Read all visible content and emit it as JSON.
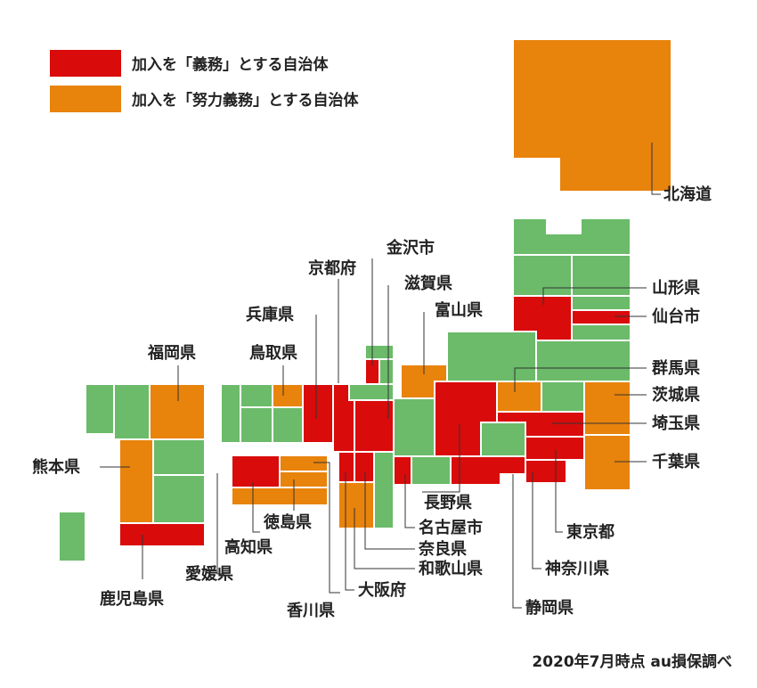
{
  "colors": {
    "mandatory": "#d90b0b",
    "effort": "#e8830c",
    "none": "#6bbb6a"
  },
  "legend": {
    "mandatory": "加入を「義務」とする自治体",
    "effort": "加入を「努力義務」とする自治体"
  },
  "labels": {
    "hokkaido": "北海道",
    "yamagata": "山形県",
    "sendai": "仙台市",
    "gunma": "群馬県",
    "ibaraki": "茨城県",
    "saitama": "埼玉県",
    "chiba": "千葉県",
    "tokyo": "東京都",
    "kanagawa": "神奈川県",
    "shizuoka": "静岡県",
    "nagano": "長野県",
    "nagoya": "名古屋市",
    "nara": "奈良県",
    "wakayama": "和歌山県",
    "osaka": "大阪府",
    "kagawa": "香川県",
    "tokushima": "徳島県",
    "kochi": "高知県",
    "ehime": "愛媛県",
    "kagoshima": "鹿児島県",
    "kumamoto": "熊本県",
    "fukuoka": "福岡県",
    "tottori": "鳥取県",
    "hyogo": "兵庫県",
    "kyoto": "京都府",
    "kanazawa": "金沢市",
    "shiga": "滋賀県",
    "toyama": "富山県"
  },
  "source": "2020年7月時点 au損保調べ"
}
